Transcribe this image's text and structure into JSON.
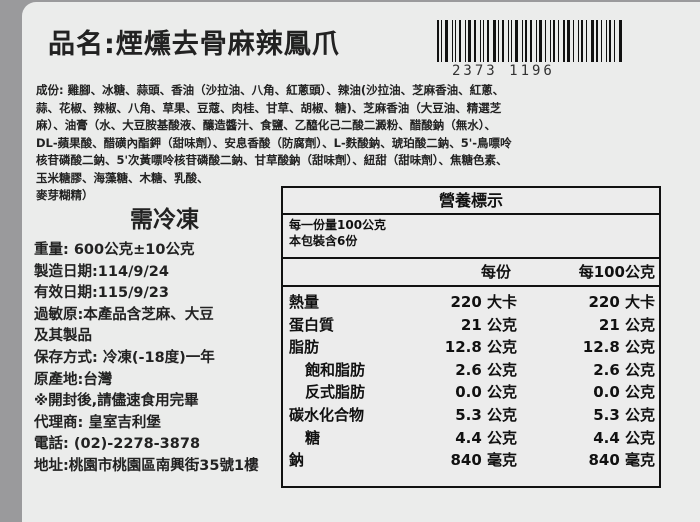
{
  "product_name": "品名:煙燻去骨麻辣鳳爪",
  "barcode_number": "2373 1196",
  "ingredients": [
    "成份: 雞腳、冰糖、蒜頭、香油（沙拉油、八角、紅蔥頭）、辣油(沙拉油、芝麻香油、紅蔥、",
    "蒜、花椒、辣椒、八角、草果、豆蔻、肉桂、甘草、胡椒、糖)、芝麻香油（大豆油、精選芝",
    "麻）、油膏（水、大豆胺基酸液、釀造醬汁、食鹽、乙醯化己二酸二澱粉、醋酸鈉（無水）、",
    "DL-蘋果酸、醋磺內酯鉀（甜味劑）、安息香酸（防腐劑）、L-麩酸鈉、琥珀酸二鈉、5'-鳥嘌呤",
    "核苷磷酸二鈉、5'次黃嘌呤核苷磷酸二鈉、甘草酸鈉（甜味劑）、紐甜（甜味劑）、焦糖色素、",
    "玉米糖膠、海藻糖、木糖、乳酸、",
    "麥芽糊精）"
  ],
  "storage_label": "需冷凍",
  "info": [
    "重量: 600公克±10公克",
    "製造日期:114/9/24",
    "有效日期:115/9/23",
    "過敏原:本產品含芝麻、大豆",
    "及其製品",
    "保存方式: 冷凍(-18度)一年",
    "原產地:台灣",
    "※開封後,請儘速食用完畢",
    "代理商: 皇室吉利堡",
    "電話: (02)-2278-3878",
    "地址:桃園市桃園區南興街35號1樓"
  ],
  "nutrition": {
    "title": "營養標示",
    "serving": "每一份量100公克",
    "servings_per_pack": "本包裝含6份",
    "col_per_serving": "每份",
    "col_per_100g": "每100公克",
    "rows": [
      {
        "name": "熱量",
        "per": "220 大卡",
        "per100": "220 大卡"
      },
      {
        "name": "蛋白質",
        "per": "21 公克",
        "per100": "21 公克"
      },
      {
        "name": "脂肪",
        "per": "12.8 公克",
        "per100": "12.8 公克"
      },
      {
        "name": "飽和脂肪",
        "per": "2.6 公克",
        "per100": "2.6 公克",
        "indent": true
      },
      {
        "name": "反式脂肪",
        "per": "0.0 公克",
        "per100": "0.0 公克",
        "indent": true
      },
      {
        "name": "碳水化合物",
        "per": "5.3 公克",
        "per100": "5.3 公克"
      },
      {
        "name": "糖",
        "per": "4.4 公克",
        "per100": "4.4 公克",
        "indent": true
      },
      {
        "name": "鈉",
        "per": "840 毫克",
        "per100": "840 毫克"
      }
    ]
  }
}
